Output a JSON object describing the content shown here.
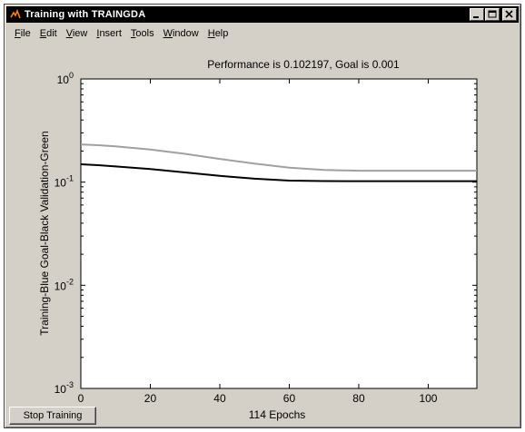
{
  "window": {
    "title": "Training with TRAINGDA"
  },
  "menu": {
    "items": [
      {
        "accel": "F",
        "rest": "ile"
      },
      {
        "accel": "E",
        "rest": "dit"
      },
      {
        "accel": "V",
        "rest": "iew"
      },
      {
        "accel": "I",
        "rest": "nsert"
      },
      {
        "accel": "T",
        "rest": "ools"
      },
      {
        "accel": "W",
        "rest": "indow"
      },
      {
        "accel": "H",
        "rest": "elp"
      }
    ]
  },
  "button": {
    "stop_training": "Stop Training"
  },
  "chart_data": {
    "type": "line",
    "title": "Performance is 0.102197, Goal is 0.001",
    "xlabel": "114 Epochs",
    "ylabel": "Training-Blue  Goal-Black  Validation-Green",
    "xlim": [
      0,
      114
    ],
    "ylim": [
      0.001,
      1
    ],
    "yscale": "log",
    "x_ticks": [
      0,
      20,
      40,
      60,
      80,
      100
    ],
    "y_tick_labels": [
      {
        "base": "10",
        "exp": "0",
        "value": 1
      },
      {
        "base": "10",
        "exp": "-1",
        "value": 0.1
      },
      {
        "base": "10",
        "exp": "-2",
        "value": 0.01
      },
      {
        "base": "10",
        "exp": "-3",
        "value": 0.001
      }
    ],
    "series": [
      {
        "color": "#a0a0a0",
        "x": [
          0,
          5,
          10,
          20,
          30,
          40,
          50,
          60,
          70,
          80,
          90,
          100,
          110,
          114
        ],
        "y": [
          0.232,
          0.228,
          0.222,
          0.207,
          0.188,
          0.168,
          0.151,
          0.138,
          0.131,
          0.129,
          0.129,
          0.129,
          0.129,
          0.129
        ]
      },
      {
        "color": "#000000",
        "x": [
          0,
          5,
          10,
          20,
          30,
          40,
          50,
          60,
          70,
          80,
          90,
          100,
          110,
          114
        ],
        "y": [
          0.149,
          0.146,
          0.142,
          0.134,
          0.124,
          0.115,
          0.108,
          0.1035,
          0.1024,
          0.1022,
          0.1022,
          0.1022,
          0.1022,
          0.1022
        ]
      }
    ]
  }
}
